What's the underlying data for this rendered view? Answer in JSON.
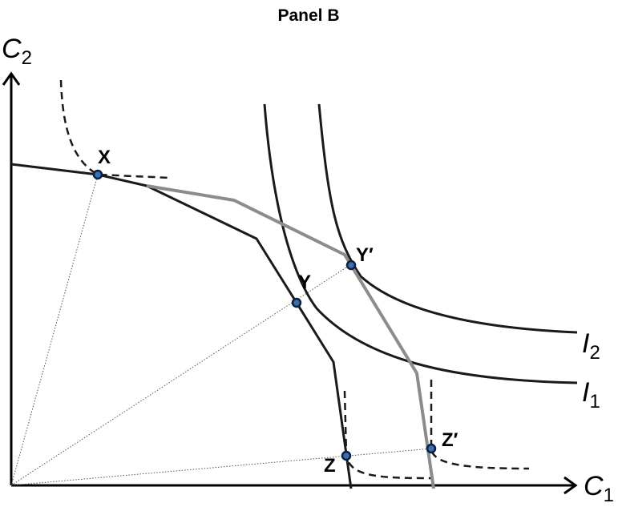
{
  "title": "Panel B",
  "axes": {
    "y_label": "C",
    "y_sub": "2",
    "x_label": "C",
    "x_sub": "1"
  },
  "curves": {
    "i1_label": "I",
    "i1_sub": "1",
    "i2_label": "I",
    "i2_sub": "2"
  },
  "points": {
    "x": "X",
    "y": "Y",
    "y_prime": "Y′",
    "z": "Z",
    "z_prime": "Z′"
  },
  "colors": {
    "frontier": "#1a1a1a",
    "expanded_frontier": "#8c8c8c",
    "point_fill": "#3a6fb0"
  }
}
